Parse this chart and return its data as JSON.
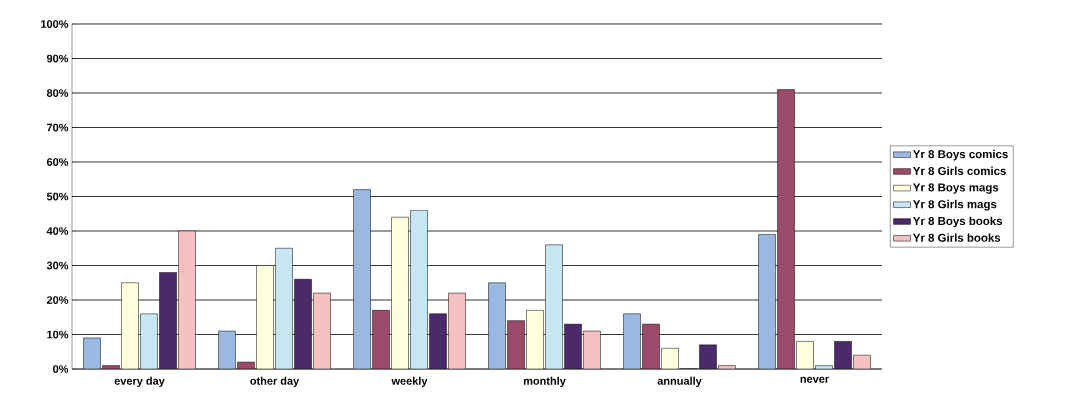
{
  "chart_data": {
    "type": "bar",
    "categories": [
      "every day",
      "other day",
      "weekly",
      "monthly",
      "annually",
      "never"
    ],
    "series": [
      {
        "name": "Yr 8 Boys comics",
        "color": "#9ab8e0",
        "values": [
          9,
          11,
          52,
          25,
          16,
          39
        ]
      },
      {
        "name": "Yr 8 Girls comics",
        "color": "#9c4a6a",
        "values": [
          1,
          2,
          17,
          14,
          13,
          81
        ]
      },
      {
        "name": "Yr 8 Boys mags",
        "color": "#ffffe0",
        "values": [
          25,
          30,
          44,
          17,
          6,
          8
        ]
      },
      {
        "name": "Yr 8 Girls mags",
        "color": "#c6e6f2",
        "values": [
          16,
          35,
          46,
          36,
          0,
          1
        ]
      },
      {
        "name": "Yr 8 Boys books",
        "color": "#4a2a6a",
        "values": [
          28,
          26,
          16,
          13,
          7,
          8
        ]
      },
      {
        "name": "Yr 8 Girls books",
        "color": "#f4c0c0",
        "values": [
          40,
          22,
          22,
          11,
          1,
          4
        ]
      }
    ],
    "ylim": [
      0,
      100
    ],
    "yticks": [
      {
        "value": 0,
        "label": "0%"
      },
      {
        "value": 10,
        "label": "10%"
      },
      {
        "value": 20,
        "label": "20%"
      },
      {
        "value": 30,
        "label": "30%"
      },
      {
        "value": 40,
        "label": "40%"
      },
      {
        "value": 50,
        "label": "50%"
      },
      {
        "value": 60,
        "label": "60%"
      },
      {
        "value": 70,
        "label": "70%"
      },
      {
        "value": 80,
        "label": "80%"
      },
      {
        "value": 90,
        "label": "90%"
      },
      {
        "value": 100,
        "label": "100%"
      }
    ],
    "grid": "y",
    "legend": "right"
  }
}
